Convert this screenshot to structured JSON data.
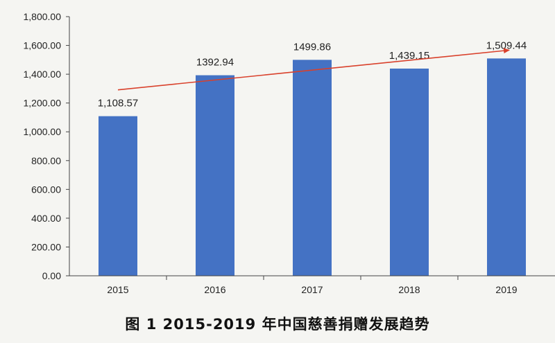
{
  "caption": "图 1 2015-2019 年中国慈善捐赠发展趋势",
  "chart_data": {
    "type": "bar",
    "title": "",
    "xlabel": "",
    "ylabel": "",
    "categories": [
      "2015",
      "2016",
      "2017",
      "2018",
      "2019"
    ],
    "series": [
      {
        "values": [
          1108.57,
          1392.94,
          1499.86,
          1439.15,
          1509.44
        ],
        "data_labels": [
          "1,108.57",
          "1392.94",
          "1499.86",
          "1,439.15",
          "1,509.44"
        ],
        "color": "#4472c4"
      }
    ],
    "ylim": [
      0,
      1800
    ],
    "y_ticks": [
      "0.00",
      "200.00",
      "400.00",
      "600.00",
      "800.00",
      "1,000.00",
      "1,200.00",
      "1,400.00",
      "1,600.00",
      "1,800.00"
    ],
    "grid": false,
    "legend": "none",
    "trend_arrow": {
      "from": "2015",
      "to": "2019",
      "color": "#d9402b"
    },
    "colors": {
      "bar": "#4472c4",
      "axis": "#444444",
      "trend": "#d9402b"
    }
  }
}
